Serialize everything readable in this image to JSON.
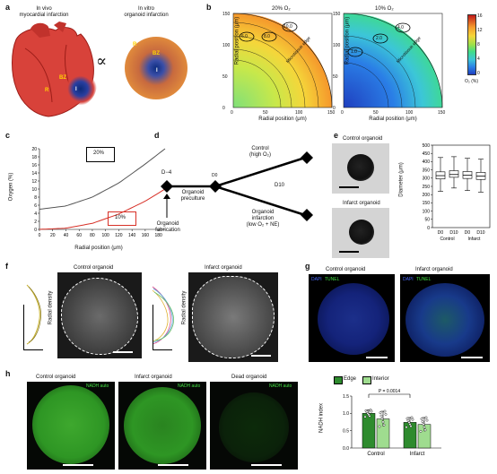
{
  "panels": {
    "a": {
      "label": "a",
      "left_title": "In vivo\nmyocardial infarction",
      "right_title": "In vitro\norganoid infarction",
      "proportional_symbol": "∝",
      "heart_labels": {
        "r": "R",
        "bz": "BZ",
        "i": "I"
      },
      "organoid_labels": {
        "r": "R",
        "bz": "BZ",
        "i": "I"
      }
    },
    "b": {
      "label": "b",
      "left_title": "20% O₂",
      "right_title": "10% O₂",
      "edge_label": "Microtissue edge",
      "left_contours": [
        "6.0",
        "8.0",
        "10.0"
      ],
      "right_contours": [
        "1.0",
        "2.0",
        "4.0"
      ],
      "colorbar_ticks": [
        "16",
        "12",
        "8",
        "4",
        "0"
      ],
      "colorbar_label": "O₂ (%)"
    },
    "c": {
      "label": "c",
      "legend_20": "20%",
      "legend_10": "10%"
    },
    "d": {
      "label": "d",
      "d_minus4": "D−4",
      "d0": "D0",
      "d10": "D10",
      "preculture": "Organoid\npreculture",
      "fabrication": "Organoid\nfabrication",
      "control": "Control\n(high O₂)",
      "infarction": "Organoid\ninfarction\n(low O₂ + NE)"
    },
    "e": {
      "label": "e",
      "control_title": "Control organoid",
      "infarct_title": "Infarct organoid"
    },
    "f": {
      "label": "f",
      "control_title": "Control organoid",
      "infarct_title": "Infarct organoid",
      "y_label": "Radial density"
    },
    "g": {
      "label": "g",
      "control_title": "Control organoid",
      "infarct_title": "Infarct organoid",
      "dapi": "DAPI",
      "tunel": "TUNEL"
    },
    "h": {
      "label": "h",
      "control_title": "Control organoid",
      "infarct_title": "Infarct organoid",
      "dead_title": "Dead organoid",
      "channel": "NADH auto",
      "legend_edge": "Edge",
      "legend_interior": "Interior"
    }
  },
  "chart_data": [
    {
      "id": "b-left",
      "type": "heatmap",
      "title": "20% O₂",
      "xlabel": "Radial position (μm)",
      "ylabel": "Radial position (μm)",
      "x_ticks": [
        "0",
        "50",
        "100",
        "150"
      ],
      "y_ticks": [
        "150",
        "100",
        "50",
        "0"
      ],
      "xlim": [
        0,
        150
      ],
      "ylim": [
        0,
        150
      ]
    },
    {
      "id": "b-right",
      "type": "heatmap",
      "title": "10% O₂",
      "xlabel": "Radial position (μm)",
      "ylabel": "Radial position (μm)",
      "x_ticks": [
        "0",
        "50",
        "100",
        "150"
      ],
      "y_ticks": [
        "150",
        "100",
        "50",
        "0"
      ],
      "xlim": [
        0,
        150
      ],
      "ylim": [
        0,
        150
      ]
    },
    {
      "id": "c",
      "type": "line",
      "xlabel": "Radial position (μm)",
      "ylabel": "Oxygen (%)",
      "x_ticks": [
        "0",
        "20",
        "40",
        "60",
        "80",
        "100",
        "120",
        "140",
        "160",
        "180"
      ],
      "y_ticks": [
        "0",
        "2",
        "4",
        "6",
        "8",
        "10",
        "12",
        "14",
        "16",
        "18",
        "20"
      ],
      "xlim": [
        0,
        190
      ],
      "ylim": [
        0,
        20
      ],
      "series": [
        {
          "name": "20%",
          "color": "#555555",
          "x": [
            0,
            40,
            80,
            120,
            160,
            190
          ],
          "y": [
            5.0,
            5.8,
            8.0,
            11.5,
            16.2,
            20.0
          ]
        },
        {
          "name": "10%",
          "color": "#d73027",
          "x": [
            0,
            40,
            80,
            120,
            160,
            190
          ],
          "y": [
            0.0,
            0.3,
            1.5,
            3.8,
            7.0,
            10.0
          ]
        }
      ]
    },
    {
      "id": "e",
      "type": "box",
      "ylabel": "Diameter (μm)",
      "y_ticks": [
        "0",
        "50",
        "100",
        "150",
        "200",
        "250",
        "300",
        "350",
        "400",
        "450",
        "500"
      ],
      "ylim": [
        0,
        500
      ],
      "categories": [
        "D0",
        "D10",
        "D0",
        "D10"
      ],
      "groups": [
        "Control",
        "Infarct"
      ],
      "boxes": [
        {
          "min": 220,
          "q1": 295,
          "median": 315,
          "q3": 338,
          "max": 425
        },
        {
          "min": 240,
          "q1": 305,
          "median": 322,
          "q3": 345,
          "max": 430
        },
        {
          "min": 225,
          "q1": 298,
          "median": 318,
          "q3": 340,
          "max": 420
        },
        {
          "min": 215,
          "q1": 292,
          "median": 312,
          "q3": 335,
          "max": 415
        }
      ]
    },
    {
      "id": "h",
      "type": "bar",
      "ylabel": "NADH index",
      "y_ticks": [
        "0.0",
        "0.5",
        "1.0",
        "1.5"
      ],
      "ylim": [
        0,
        1.5
      ],
      "categories": [
        "Control",
        "Infarct"
      ],
      "annotation": "P = 0.0014",
      "series": [
        {
          "name": "Edge",
          "color": "#2e8b2e",
          "values": [
            1.0,
            0.74
          ]
        },
        {
          "name": "Interior",
          "color": "#9fdc8f",
          "values": [
            0.84,
            0.68
          ]
        }
      ],
      "errors": [
        0.1,
        0.22,
        0.14,
        0.2
      ]
    }
  ]
}
